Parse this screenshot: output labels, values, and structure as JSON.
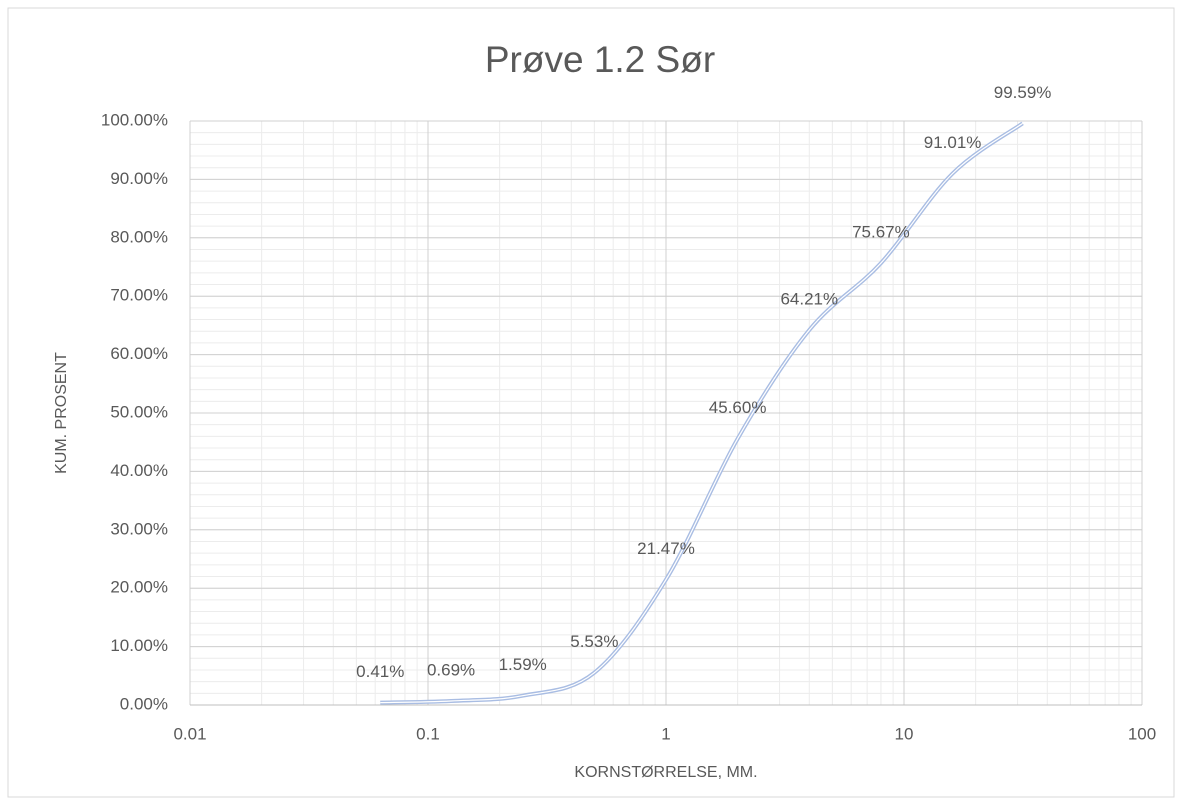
{
  "chart_data": {
    "type": "line",
    "title": "Prøve 1.2 Sør",
    "x_label": "KORNSTØRRELSE, MM.",
    "y_label": "KUM. PROSENT",
    "x": [
      0.063,
      0.125,
      0.25,
      0.5,
      1,
      2,
      4,
      8,
      16,
      31.5
    ],
    "series": [
      {
        "name": "Prøve 1.2 Sør",
        "color": "#a9bde3",
        "values": [
          0.41,
          0.69,
          1.59,
          5.53,
          21.47,
          45.6,
          64.21,
          75.67,
          91.01,
          99.59
        ],
        "value_labels": [
          "0.41%",
          "0.69%",
          "1.59%",
          "5.53%",
          "21.47%",
          "45.60%",
          "64.21%",
          "75.67%",
          "91.01%",
          "99.59%"
        ]
      }
    ],
    "x_log": true,
    "xlim": [
      0.01,
      100
    ],
    "xticks": [
      0.01,
      0.1,
      1,
      10,
      100
    ],
    "ylim": [
      0,
      100
    ],
    "yticks": [
      {
        "value": 0,
        "label": "0.00%"
      },
      {
        "value": 10,
        "label": "10.00%"
      },
      {
        "value": 20,
        "label": "20.00%"
      },
      {
        "value": 30,
        "label": "30.00%"
      },
      {
        "value": 40,
        "label": "40.00%"
      },
      {
        "value": 50,
        "label": "50.00%"
      },
      {
        "value": 60,
        "label": "60.00%"
      },
      {
        "value": 70,
        "label": "70.00%"
      },
      {
        "value": 80,
        "label": "80.00%"
      },
      {
        "value": 90,
        "label": "90.00%"
      },
      {
        "value": 100,
        "label": "100.00%"
      }
    ],
    "grid": true,
    "minor_grid": true,
    "smooth": true
  }
}
